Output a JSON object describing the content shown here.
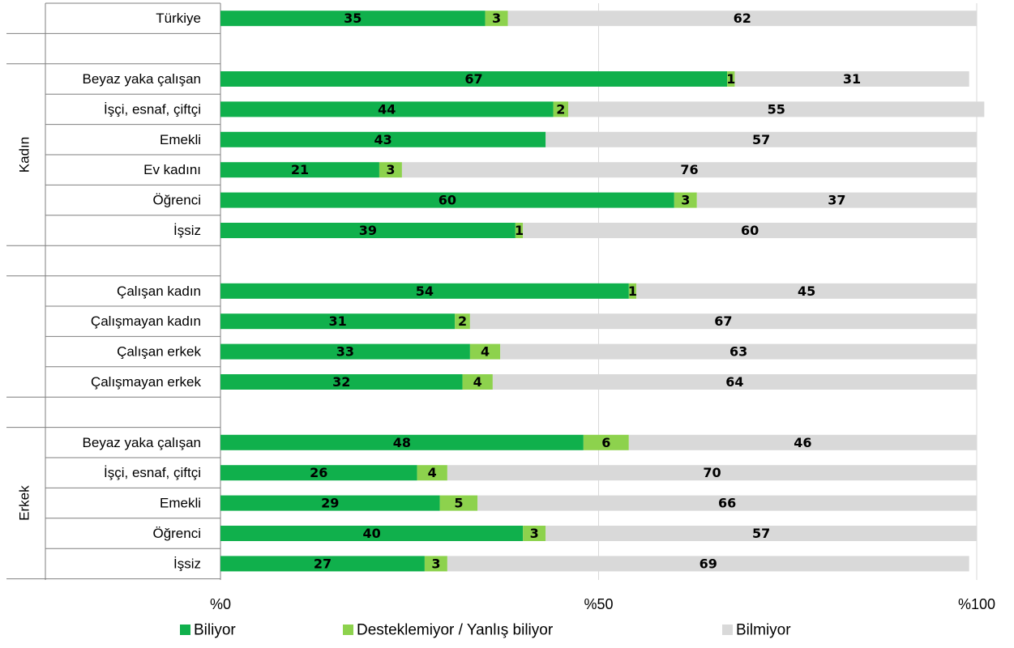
{
  "chart_data": {
    "type": "bar",
    "orientation": "horizontal",
    "stacked": true,
    "x_axis_prefix": "%",
    "xlim": [
      0,
      100
    ],
    "xticks": [
      "%0",
      "%50",
      "%100"
    ],
    "grid": true,
    "legend_position": "bottom",
    "groups": [
      {
        "name": "",
        "rows": [
          "Türkiye"
        ]
      },
      {
        "name": "Kadın",
        "rows": [
          "Beyaz yaka çalışan",
          "İşçi, esnaf, çiftçi",
          "Emekli",
          "Ev kadını",
          "Öğrenci",
          "İşsiz"
        ]
      },
      {
        "name": "",
        "rows": [
          "Çalışan kadın",
          "Çalışmayan kadın",
          "Çalışan erkek",
          "Çalışmayan erkek"
        ]
      },
      {
        "name": "Erkek",
        "rows": [
          "Beyaz yaka çalışan",
          "İşçi, esnaf, çiftçi",
          "Emekli",
          "Öğrenci",
          "İşsiz"
        ]
      }
    ],
    "series": [
      {
        "name": "Biliyor",
        "color": "#10b04c",
        "values": [
          35,
          67,
          44,
          43,
          21,
          60,
          39,
          54,
          31,
          33,
          32,
          48,
          26,
          29,
          40,
          27
        ]
      },
      {
        "name": "Desteklemiyor / Yanlış biliyor",
        "color": "#8dd24d",
        "values": [
          3,
          1,
          2,
          null,
          3,
          3,
          1,
          1,
          2,
          4,
          4,
          6,
          4,
          5,
          3,
          3
        ]
      },
      {
        "name": "Bilmiyor",
        "color": "#d9d9d9",
        "values": [
          62,
          31,
          55,
          57,
          76,
          37,
          60,
          45,
          67,
          63,
          64,
          46,
          70,
          66,
          57,
          69
        ]
      }
    ]
  }
}
